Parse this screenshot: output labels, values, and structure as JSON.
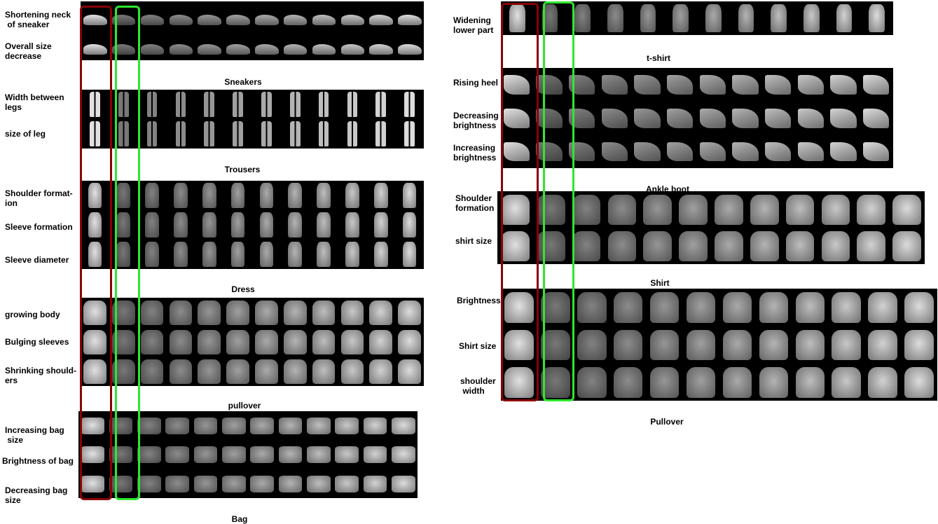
{
  "left_column": {
    "groups": [
      {
        "caption": "Sneakers",
        "rows": [
          "Shortening neck\n of sneaker",
          "Overall size\ndecrease"
        ]
      },
      {
        "caption": "Trousers",
        "rows": [
          "Width between\nlegs",
          "size of leg"
        ]
      },
      {
        "caption": "Dress",
        "rows": [
          "Shoulder format-\nion",
          "Sleeve formation",
          "Sleeve diameter"
        ]
      },
      {
        "caption": "pullover",
        "rows": [
          "growing body",
          "Bulging sleeves",
          "Shrinking should-\ners"
        ]
      },
      {
        "caption": "Bag",
        "rows": [
          "Increasing bag\n size",
          "Brightness of bag",
          "Decreasing bag\nsize"
        ]
      }
    ]
  },
  "right_column": {
    "groups": [
      {
        "caption": "t-shirt",
        "rows": [
          "Widening\nlower part"
        ]
      },
      {
        "caption": "Ankle boot",
        "rows": [
          "Rising heel",
          "Decreasing\nbrightness",
          "Increasing\nbrightness"
        ]
      },
      {
        "caption": "Shirt",
        "rows": [
          "Shoulder\nformation",
          "shirt size"
        ]
      },
      {
        "caption": "Pullover",
        "rows": [
          "Brightness",
          "Shirt size",
          "shoulder\n width"
        ]
      }
    ]
  },
  "colors": {
    "original_column_box": "#8b0000",
    "reconstruction_column_box": "#2ee82e",
    "strip_background": "#000000"
  }
}
